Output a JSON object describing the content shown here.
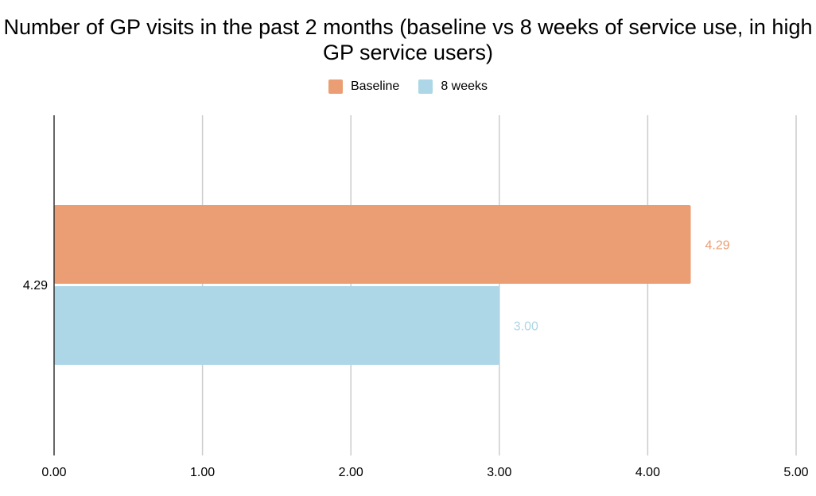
{
  "chart_data": {
    "type": "bar",
    "orientation": "horizontal",
    "title": "Number of GP visits in the past 2 months (baseline vs 8 weeks of service use, in high GP service users)",
    "categories": [
      "4.29"
    ],
    "series": [
      {
        "name": "Baseline",
        "values": [
          4.29
        ],
        "color": "#EB9E73",
        "label_color": "#EB9E73",
        "data_labels": [
          "4.29"
        ]
      },
      {
        "name": "8 weeks",
        "values": [
          3.0
        ],
        "color": "#ADD7E6",
        "label_color": "#ADD7E6",
        "data_labels": [
          "3.00"
        ]
      }
    ],
    "x_ticks": [
      "0.00",
      "1.00",
      "2.00",
      "3.00",
      "4.00",
      "5.00"
    ],
    "xlim": [
      0,
      5
    ],
    "grid": true,
    "legend_position": "top-center",
    "xlabel": "",
    "ylabel": ""
  }
}
